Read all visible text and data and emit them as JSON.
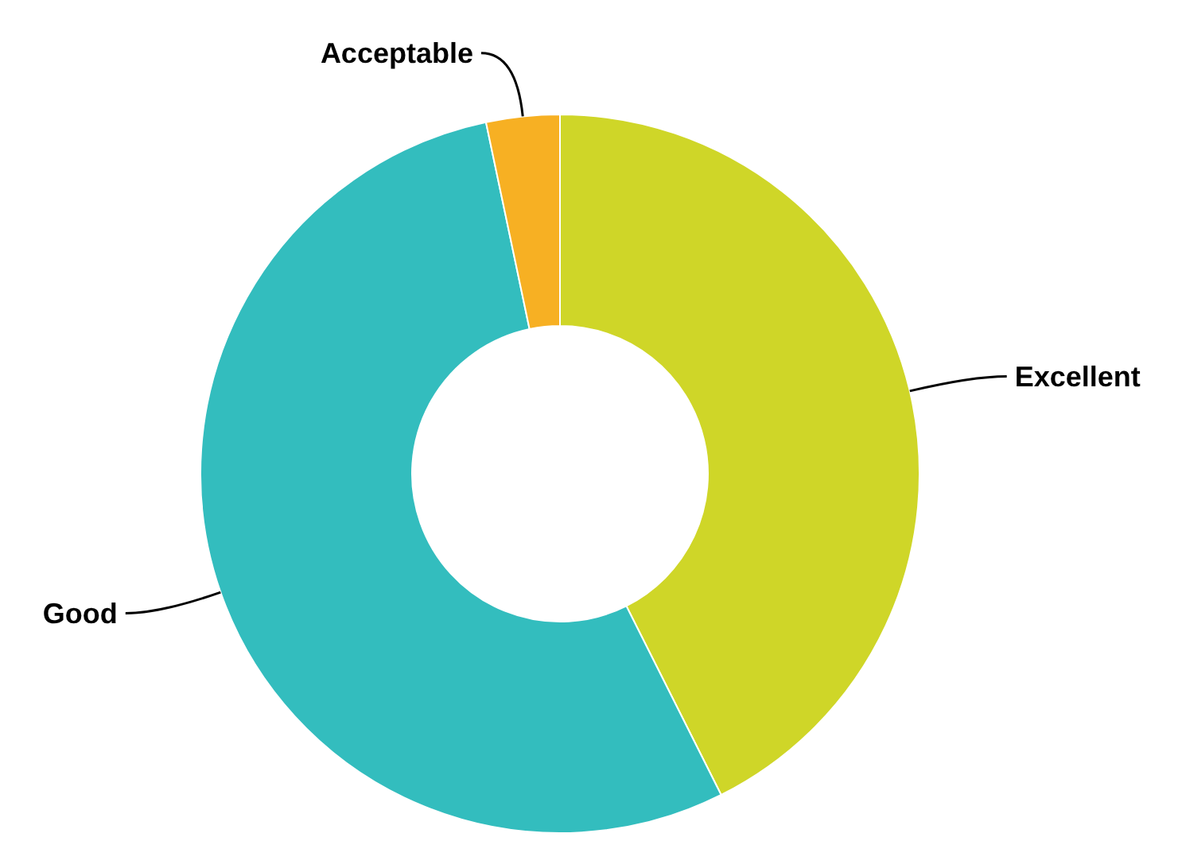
{
  "chart_data": {
    "type": "donut",
    "categories": [
      "Excellent",
      "Good",
      "Acceptable"
    ],
    "values": [
      42.6,
      54.1,
      3.3
    ],
    "colors": [
      "#cfd628",
      "#33bdbe",
      "#f7b023"
    ]
  }
}
